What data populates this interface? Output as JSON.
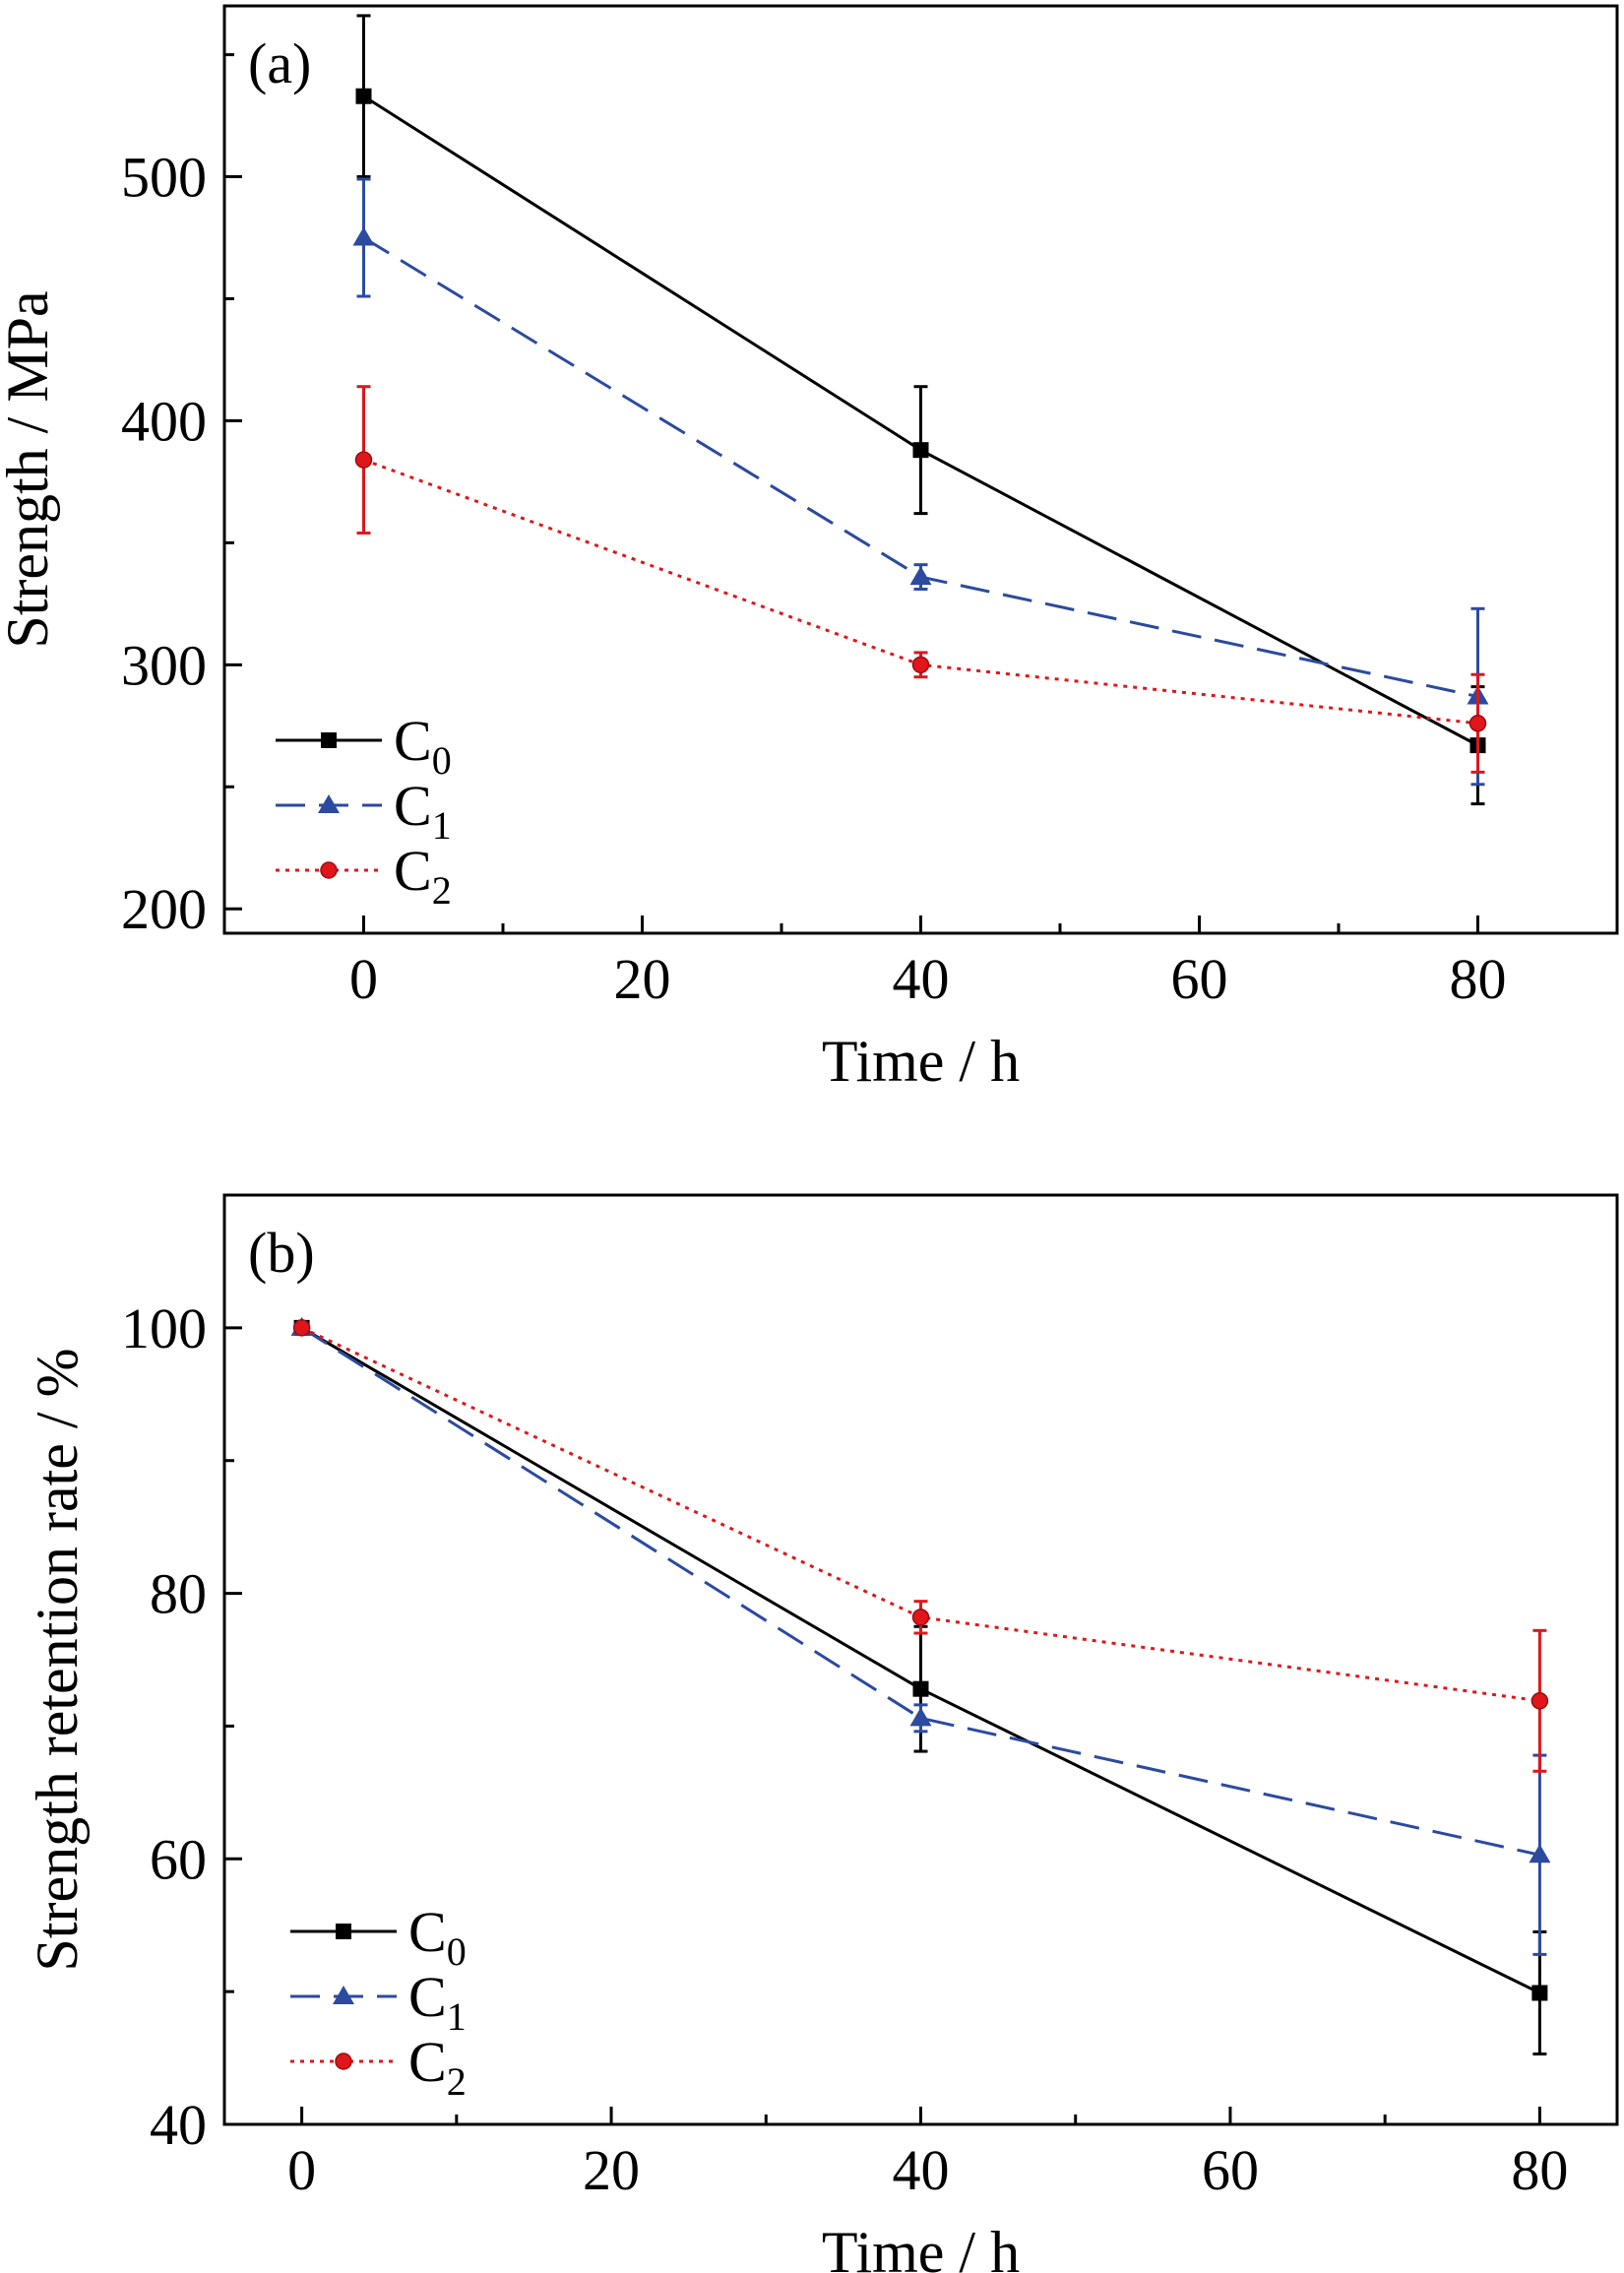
{
  "chart_data": [
    {
      "type": "line",
      "panel_label": "(a)",
      "xlabel": "Time / h",
      "ylabel": "Strength / MPa",
      "x": [
        0,
        40,
        80
      ],
      "xlim": [
        -10,
        90
      ],
      "ylim": [
        190,
        570
      ],
      "xticks": [
        0,
        20,
        40,
        60,
        80
      ],
      "yticks": [
        200,
        300,
        400,
        500
      ],
      "legend_position": "bottom-left",
      "series": [
        {
          "name": "C",
          "subscript": "0",
          "values": [
            533,
            388,
            267
          ],
          "errors": [
            33,
            26,
            24
          ],
          "color": "#000000",
          "dash": "",
          "marker": "square"
        },
        {
          "name": "C",
          "subscript": "1",
          "values": [
            475,
            336,
            287
          ],
          "errors": [
            24,
            5,
            36
          ],
          "color": "#2b4aa0",
          "dash": "30,14",
          "marker": "triangle"
        },
        {
          "name": "C",
          "subscript": "2",
          "values": [
            384,
            300,
            276
          ],
          "errors": [
            30,
            5,
            20
          ],
          "color": "#e0161b",
          "dash": "4,6",
          "marker": "circle"
        }
      ]
    },
    {
      "type": "line",
      "panel_label": "(b)",
      "xlabel": "Time / h",
      "ylabel": "Strength retention rate / %",
      "x": [
        0,
        40,
        80
      ],
      "xlim": [
        -5,
        85
      ],
      "ylim": [
        40,
        110
      ],
      "xticks": [
        0,
        20,
        40,
        60,
        80
      ],
      "yticks": [
        40,
        60,
        80,
        100
      ],
      "legend_position": "bottom-left",
      "series": [
        {
          "name": "C",
          "subscript": "0",
          "values": [
            100,
            72.8,
            49.9
          ],
          "errors": [
            0,
            4.7,
            4.6
          ],
          "color": "#000000",
          "dash": "",
          "marker": "square"
        },
        {
          "name": "C",
          "subscript": "1",
          "values": [
            100,
            70.6,
            60.3
          ],
          "errors": [
            0,
            1.0,
            7.5
          ],
          "color": "#2b4aa0",
          "dash": "30,14",
          "marker": "triangle"
        },
        {
          "name": "C",
          "subscript": "2",
          "values": [
            100,
            78.2,
            71.9
          ],
          "errors": [
            0,
            1.2,
            5.3
          ],
          "color": "#e0161b",
          "dash": "4,6",
          "marker": "circle"
        }
      ]
    }
  ]
}
